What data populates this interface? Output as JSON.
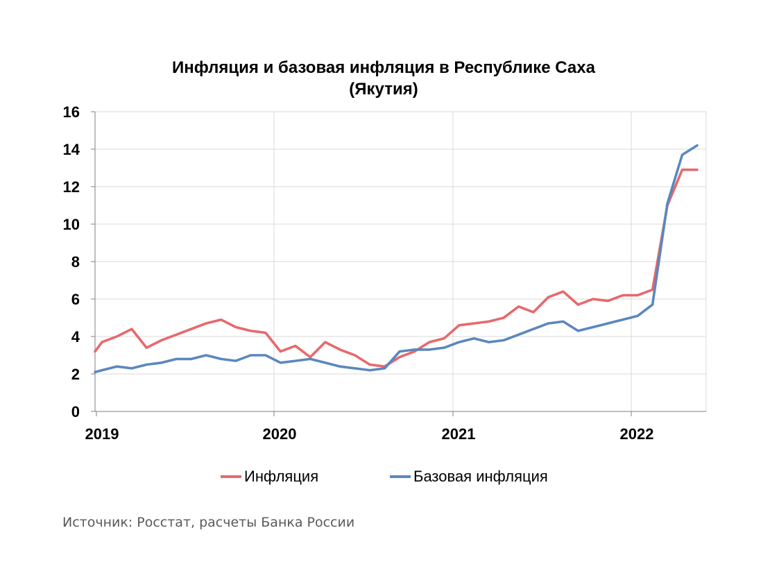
{
  "chart_data": {
    "type": "line",
    "title": "Инфляция и базовая инфляция в Республике Саха (Якутия)",
    "title_lines": [
      "Инфляция и базовая инфляция в Республике Саха",
      "(Якутия)"
    ],
    "ylim": [
      0,
      16
    ],
    "y_ticks": [
      "0",
      "2",
      "4",
      "6",
      "8",
      "10",
      "12",
      "14",
      "16"
    ],
    "x_ticks": [
      "2019",
      "2020",
      "2021",
      "2022"
    ],
    "grid": true,
    "legend_position": "bottom",
    "x": [
      "2019-01",
      "2019-02",
      "2019-03",
      "2019-04",
      "2019-05",
      "2019-06",
      "2019-07",
      "2019-08",
      "2019-09",
      "2019-10",
      "2019-11",
      "2019-12",
      "2020-01",
      "2020-02",
      "2020-03",
      "2020-04",
      "2020-05",
      "2020-06",
      "2020-07",
      "2020-08",
      "2020-09",
      "2020-10",
      "2020-11",
      "2020-12",
      "2021-01",
      "2021-02",
      "2021-03",
      "2021-04",
      "2021-05",
      "2021-06",
      "2021-07",
      "2021-08",
      "2021-09",
      "2021-10",
      "2021-11",
      "2021-12",
      "2022-01",
      "2022-02",
      "2022-03",
      "2022-04",
      "2022-05"
    ],
    "series": [
      {
        "name": "Инфляция",
        "color": "#e8686b",
        "values": [
          3.7,
          4.0,
          4.4,
          3.4,
          3.8,
          4.1,
          4.4,
          4.7,
          4.9,
          4.5,
          4.3,
          4.2,
          3.2,
          3.5,
          2.9,
          3.7,
          3.3,
          3.0,
          2.5,
          2.4,
          2.9,
          3.2,
          3.7,
          3.9,
          4.6,
          4.7,
          4.8,
          5.0,
          5.6,
          5.3,
          6.1,
          6.4,
          5.7,
          6.0,
          5.9,
          6.2,
          6.2,
          6.5,
          11.0,
          12.9,
          12.9
        ],
        "start_value": 3.2
      },
      {
        "name": "Базовая инфляция",
        "color": "#5b87bd",
        "values": [
          2.2,
          2.4,
          2.3,
          2.5,
          2.6,
          2.8,
          2.8,
          3.0,
          2.8,
          2.7,
          3.0,
          3.0,
          2.6,
          2.7,
          2.8,
          2.6,
          2.4,
          2.3,
          2.2,
          2.3,
          3.2,
          3.3,
          3.3,
          3.4,
          3.7,
          3.9,
          3.7,
          3.8,
          4.1,
          4.4,
          4.7,
          4.8,
          4.3,
          4.5,
          4.7,
          4.9,
          5.1,
          5.7,
          11.1,
          13.7,
          14.2
        ],
        "start_value": 2.1
      }
    ]
  },
  "legend": {
    "inflation": "Инфляция",
    "core": "Базовая инфляция"
  },
  "source": "Источник: Росстат, расчеты Банка России"
}
